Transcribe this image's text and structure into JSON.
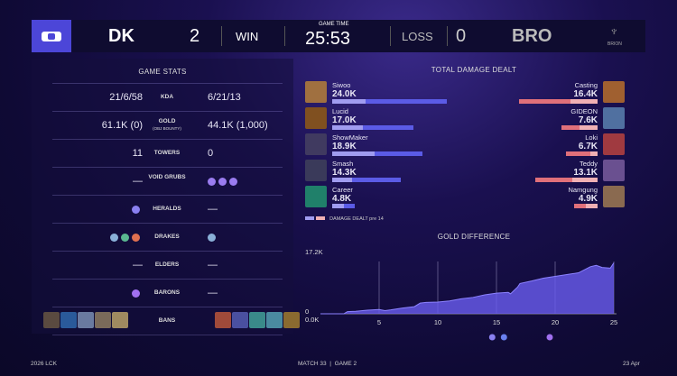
{
  "header": {
    "team_left": "DK",
    "score_left": "2",
    "result_left": "WIN",
    "game_time_label": "GAME TIME",
    "game_time": "25:53",
    "result_right": "LOSS",
    "score_right": "0",
    "team_right": "BRO",
    "brand_right": "BRION"
  },
  "game_stats": {
    "title": "GAME STATS",
    "rows": [
      {
        "label": "KDA",
        "left": "21/6/58",
        "right": "6/21/13"
      },
      {
        "label": "GOLD",
        "sublabel": "(OBJ BOUNTY)",
        "left": "61.1K (0)",
        "right": "44.1K (1,000)"
      },
      {
        "label": "TOWERS",
        "left": "11",
        "right": "0"
      },
      {
        "label": "VOID GRUBS",
        "left": "—",
        "right_icons": [
          "grub-icon",
          "grub-icon",
          "grub-icon"
        ]
      },
      {
        "label": "HERALDS",
        "left_icons": [
          "herald-icon"
        ],
        "right": "—"
      },
      {
        "label": "DRAKES",
        "left_icons": [
          "cloud-drake-icon",
          "mountain-drake-icon",
          "chemtech-drake-icon"
        ],
        "right_icons": [
          "cloud-drake-icon"
        ]
      },
      {
        "label": "ELDERS",
        "left": "—",
        "right": "—"
      },
      {
        "label": "BARONS",
        "left_icons": [
          "baron-icon"
        ],
        "right": "—"
      },
      {
        "label": "BANS",
        "left_count": 5,
        "right_count": 5
      }
    ]
  },
  "damage": {
    "title": "TOTAL DAMAGE DEALT",
    "legend": "DAMAGE DEALT pre 14",
    "colors": {
      "blue": "#5b5be6",
      "blue_light": "#a09cf0",
      "red": "#e0707a",
      "red_light": "#f0b0b4"
    },
    "left": [
      {
        "name": "Siwoo",
        "value": "24.0K",
        "total": 24.0,
        "pre14": 7.0
      },
      {
        "name": "Lucid",
        "value": "17.0K",
        "total": 17.0,
        "pre14": 6.4
      },
      {
        "name": "ShowMaker",
        "value": "18.9K",
        "total": 18.9,
        "pre14": 8.9
      },
      {
        "name": "Smash",
        "value": "14.3K",
        "total": 14.3,
        "pre14": 4.1
      },
      {
        "name": "Career",
        "value": "4.8K",
        "total": 4.8,
        "pre14": 2.4
      }
    ],
    "right": [
      {
        "name": "Casting",
        "value": "16.4K",
        "total": 16.4,
        "pre14": 5.6
      },
      {
        "name": "GIDEON",
        "value": "7.6K",
        "total": 7.6,
        "pre14": 3.8
      },
      {
        "name": "Loki",
        "value": "6.7K",
        "total": 6.7,
        "pre14": 1.5
      },
      {
        "name": "Teddy",
        "value": "13.1K",
        "total": 13.1,
        "pre14": 5.3
      },
      {
        "name": "Namgung",
        "value": "4.9K",
        "total": 4.9,
        "pre14": 2.5
      }
    ]
  },
  "chart_data": {
    "type": "area",
    "title": "GOLD DIFFERENCE",
    "ymax_label": "17.2K",
    "ymin_label": "0.0K",
    "ylim": [
      0,
      17.2
    ],
    "xlim": [
      0,
      25
    ],
    "xticks": [
      "0",
      "5",
      "10",
      "15",
      "20",
      "25"
    ],
    "grid": true,
    "color": "#6a5cf0",
    "x": [
      0,
      2,
      2.3,
      3,
      4,
      5,
      5.5,
      6,
      7,
      8,
      8.5,
      9,
      10,
      11,
      12,
      13,
      14,
      15,
      16,
      16.2,
      16.8,
      17,
      18,
      19,
      20,
      21,
      22,
      23,
      23.5,
      24,
      24.7,
      25
    ],
    "y": [
      0,
      0,
      0.6,
      0.7,
      1.0,
      1.2,
      0.9,
      1.1,
      1.6,
      2.0,
      3.0,
      3.2,
      3.3,
      3.6,
      4.2,
      4.6,
      5.3,
      5.8,
      6.0,
      5.6,
      7.5,
      8.5,
      9.2,
      10.0,
      10.5,
      11.0,
      11.5,
      13.2,
      13.6,
      13.0,
      12.8,
      14.3
    ],
    "events": [
      "herald-icon",
      "atakhan-icon",
      "baron-icon"
    ]
  },
  "footer": {
    "left": "2026 LCK",
    "center": "MATCH 33  |  GAME 2",
    "right": "23 Apr"
  }
}
